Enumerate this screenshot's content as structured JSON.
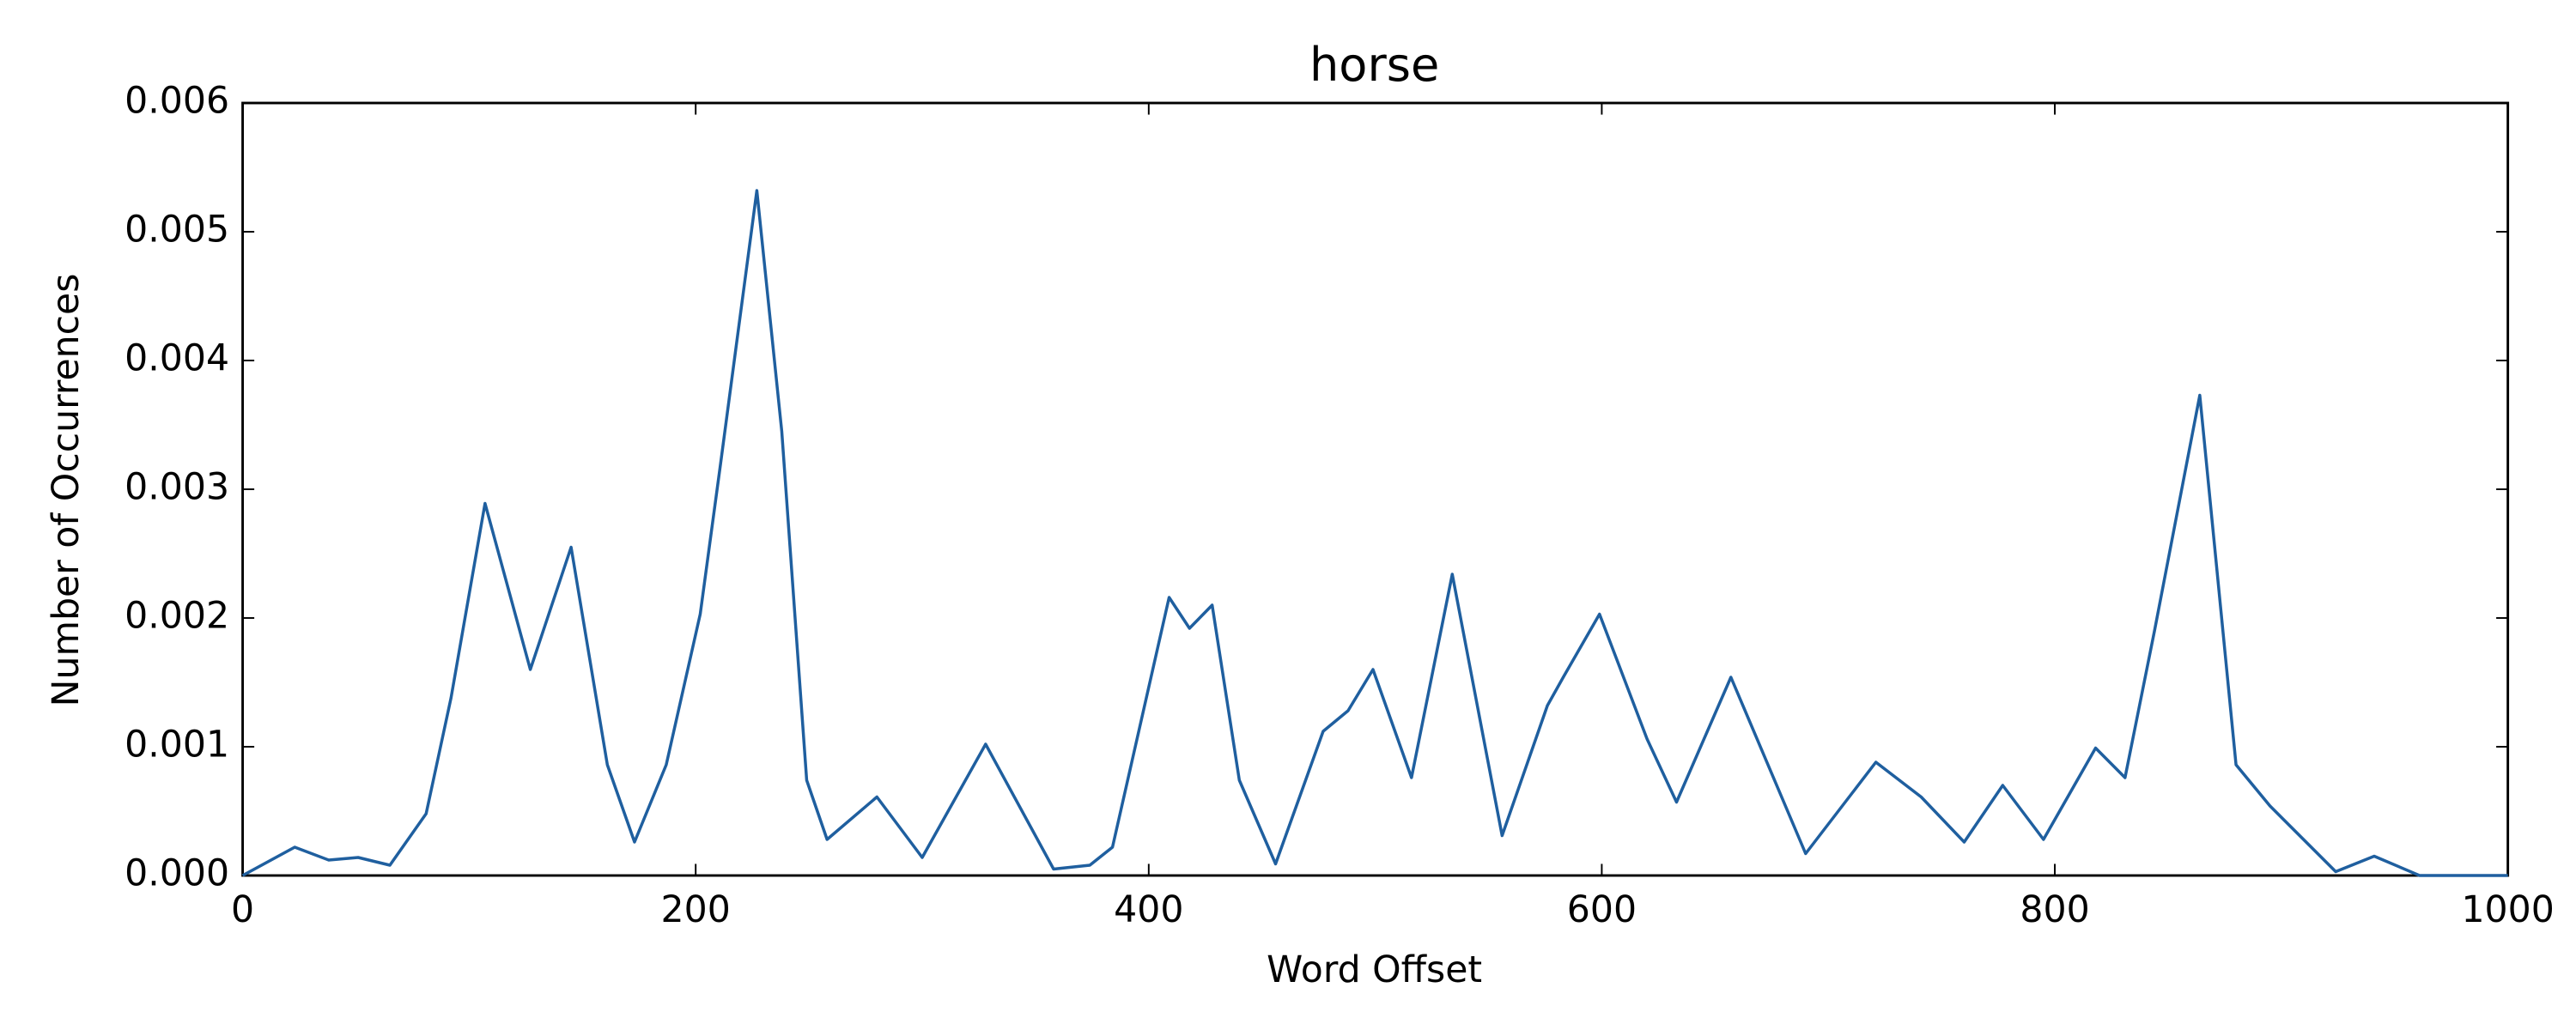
{
  "chart_data": {
    "type": "line",
    "title": "horse",
    "x_label": "Word Offset",
    "y_label": "Number of Occurrences",
    "x": [
      0,
      23,
      38,
      51,
      65,
      81,
      92,
      107,
      127,
      145,
      161,
      173,
      187,
      202,
      211,
      227,
      238,
      249,
      258,
      280,
      300,
      328,
      358,
      374,
      384,
      409,
      418,
      428,
      440,
      456,
      477,
      488,
      499,
      516,
      534,
      556,
      576,
      583,
      599,
      620,
      633,
      657,
      690,
      721,
      741,
      760,
      777,
      795,
      818,
      831,
      844,
      864,
      880,
      895,
      924,
      941,
      961,
      1000
    ],
    "series": [
      {
        "name": "horse",
        "color": "#1f5f9f",
        "values": [
          0.0,
          0.00022,
          0.00012,
          0.00014,
          8e-05,
          0.00048,
          0.00138,
          0.00289,
          0.0016,
          0.00255,
          0.00086,
          0.00026,
          0.00086,
          0.00203,
          0.0032,
          0.00532,
          0.00345,
          0.00074,
          0.00028,
          0.00061,
          0.00014,
          0.00102,
          5e-05,
          8e-05,
          0.00022,
          0.00216,
          0.00192,
          0.0021,
          0.00074,
          9e-05,
          0.00112,
          0.00128,
          0.0016,
          0.00076,
          0.00234,
          0.00031,
          0.00132,
          0.00154,
          0.00203,
          0.00106,
          0.00057,
          0.00154,
          0.00017,
          0.00088,
          0.00061,
          0.00026,
          0.0007,
          0.00028,
          0.00099,
          0.00076,
          0.0019,
          0.00373,
          0.00086,
          0.00054,
          3e-05,
          0.00015,
          0.0,
          0.0
        ]
      }
    ],
    "xlim": [
      0,
      1000
    ],
    "xticks": [
      0,
      200,
      400,
      600,
      800,
      1000
    ],
    "ylim": [
      0,
      0.006
    ],
    "yticks": [
      {
        "value": 0,
        "label": "0.000"
      },
      {
        "value": 0.001,
        "label": "0.001"
      },
      {
        "value": 0.002,
        "label": "0.002"
      },
      {
        "value": 0.003,
        "label": "0.003"
      },
      {
        "value": 0.004,
        "label": "0.004"
      },
      {
        "value": 0.005,
        "label": "0.005"
      },
      {
        "value": 0.006,
        "label": "0.006"
      }
    ]
  }
}
